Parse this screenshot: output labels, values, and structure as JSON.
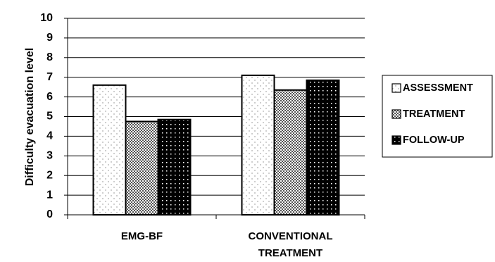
{
  "chart_data": {
    "type": "bar",
    "title": "",
    "ylabel": "Difficulty evacuation level",
    "xlabel": "",
    "ylim": [
      0,
      10
    ],
    "ytick_labels": [
      "0",
      "1",
      "2",
      "3",
      "4",
      "5",
      "6",
      "7",
      "8",
      "9",
      "10"
    ],
    "grid": "horizontal",
    "legend_position": "right",
    "categories": [
      [
        "EMG-BF"
      ],
      [
        "CONVENTIONAL",
        "TREATMENT"
      ]
    ],
    "series": [
      {
        "name": "ASSESSMENT",
        "values": [
          6.6,
          7.1
        ],
        "pattern": "sparse-dots"
      },
      {
        "name": "TREATMENT",
        "values": [
          4.75,
          6.35
        ],
        "pattern": "checker"
      },
      {
        "name": "FOLLOW-UP",
        "values": [
          4.85,
          6.85
        ],
        "pattern": "dense-dark"
      }
    ]
  }
}
